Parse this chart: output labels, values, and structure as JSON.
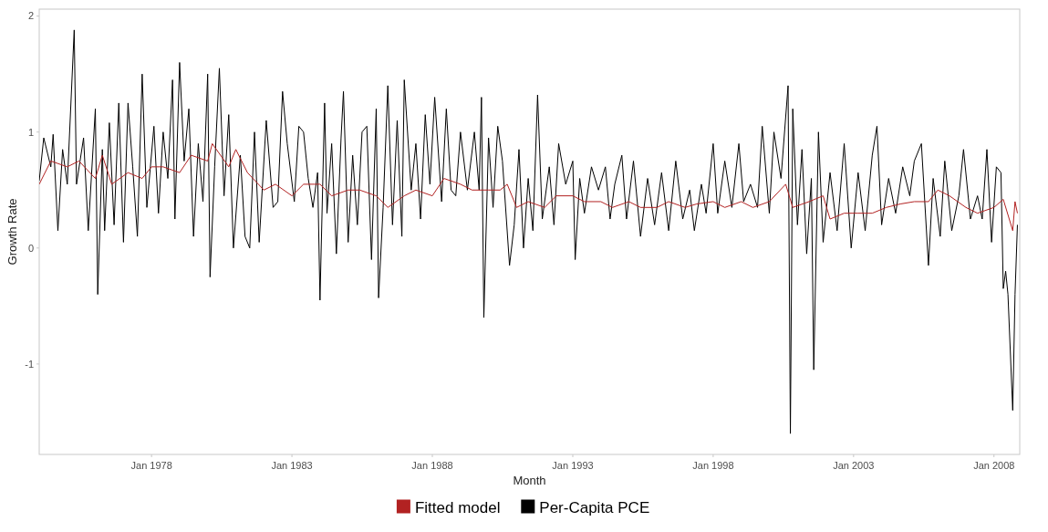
{
  "chart_data": {
    "type": "line",
    "xlabel": "Month",
    "ylabel": "Growth Rate",
    "xlim": [
      "1974-01",
      "2008-12"
    ],
    "ylim": [
      -1.78,
      2.06
    ],
    "yticks": [
      -1,
      0,
      1,
      2
    ],
    "xticks": [
      {
        "value": "1978-01",
        "label": "Jan 1978"
      },
      {
        "value": "1983-01",
        "label": "Jan 1983"
      },
      {
        "value": "1988-01",
        "label": "Jan 1988"
      },
      {
        "value": "1993-01",
        "label": "Jan 1993"
      },
      {
        "value": "1998-01",
        "label": "Jan 1998"
      },
      {
        "value": "2003-01",
        "label": "Jan 2003"
      },
      {
        "value": "2008-01",
        "label": "Jan 2008"
      }
    ],
    "grid": false,
    "legend": "bottom",
    "marker": "none",
    "line_style": "solid",
    "series": [
      {
        "name": "Fitted model",
        "color": "#b22222",
        "x": [
          "1974-01",
          "1974-06",
          "1975-01",
          "1975-06",
          "1976-01",
          "1976-04",
          "1976-08",
          "1977-03",
          "1977-09",
          "1978-01",
          "1978-06",
          "1979-01",
          "1979-06",
          "1980-01",
          "1980-03",
          "1980-10",
          "1981-01",
          "1981-06",
          "1982-01",
          "1982-06",
          "1983-01",
          "1983-06",
          "1984-01",
          "1984-06",
          "1985-01",
          "1985-06",
          "1986-01",
          "1986-06",
          "1987-01",
          "1987-06",
          "1988-01",
          "1988-06",
          "1989-01",
          "1989-06",
          "1990-01",
          "1990-06",
          "1990-09",
          "1991-01",
          "1991-06",
          "1992-01",
          "1992-06",
          "1993-01",
          "1993-06",
          "1994-01",
          "1994-06",
          "1995-01",
          "1995-06",
          "1996-01",
          "1996-06",
          "1997-01",
          "1997-06",
          "1998-01",
          "1998-06",
          "1999-01",
          "1999-06",
          "2000-01",
          "2000-08",
          "2000-11",
          "2001-06",
          "2001-12",
          "2002-03",
          "2002-09",
          "2003-03",
          "2003-09",
          "2004-03",
          "2004-09",
          "2005-03",
          "2005-09",
          "2006-01",
          "2006-06",
          "2007-01",
          "2007-06",
          "2008-01",
          "2008-05",
          "2008-09",
          "2008-10",
          "2008-11"
        ],
        "values": [
          0.55,
          0.75,
          0.7,
          0.75,
          0.6,
          0.8,
          0.55,
          0.65,
          0.6,
          0.7,
          0.7,
          0.65,
          0.8,
          0.75,
          0.9,
          0.7,
          0.85,
          0.65,
          0.5,
          0.55,
          0.45,
          0.55,
          0.55,
          0.45,
          0.5,
          0.5,
          0.45,
          0.35,
          0.45,
          0.5,
          0.45,
          0.6,
          0.55,
          0.5,
          0.5,
          0.5,
          0.55,
          0.35,
          0.4,
          0.35,
          0.45,
          0.45,
          0.4,
          0.4,
          0.35,
          0.4,
          0.35,
          0.35,
          0.4,
          0.35,
          0.38,
          0.4,
          0.35,
          0.4,
          0.35,
          0.4,
          0.55,
          0.35,
          0.4,
          0.45,
          0.25,
          0.3,
          0.3,
          0.3,
          0.35,
          0.38,
          0.4,
          0.4,
          0.5,
          0.45,
          0.35,
          0.3,
          0.35,
          0.42,
          0.15,
          0.4,
          0.3
        ]
      },
      {
        "name": "Per-Capita PCE",
        "color": "#000000",
        "x": [
          "1974-01",
          "1974-03",
          "1974-06",
          "1974-07",
          "1974-09",
          "1974-11",
          "1975-01",
          "1975-04",
          "1975-05",
          "1975-08",
          "1975-10",
          "1976-01",
          "1976-02",
          "1976-04",
          "1976-05",
          "1976-07",
          "1976-09",
          "1976-11",
          "1977-01",
          "1977-03",
          "1977-05",
          "1977-07",
          "1977-09",
          "1977-11",
          "1978-02",
          "1978-04",
          "1978-06",
          "1978-08",
          "1978-10",
          "1978-11",
          "1979-01",
          "1979-03",
          "1979-05",
          "1979-07",
          "1979-09",
          "1979-11",
          "1980-01",
          "1980-02",
          "1980-04",
          "1980-06",
          "1980-08",
          "1980-10",
          "1980-12",
          "1981-03",
          "1981-05",
          "1981-07",
          "1981-09",
          "1981-11",
          "1982-02",
          "1982-05",
          "1982-07",
          "1982-09",
          "1982-11",
          "1983-02",
          "1983-04",
          "1983-06",
          "1983-08",
          "1983-10",
          "1983-12",
          "1984-01",
          "1984-03",
          "1984-04",
          "1984-06",
          "1984-08",
          "1984-10",
          "1984-11",
          "1985-01",
          "1985-03",
          "1985-05",
          "1985-07",
          "1985-09",
          "1985-11",
          "1986-01",
          "1986-02",
          "1986-04",
          "1986-06",
          "1986-08",
          "1986-10",
          "1986-12",
          "1987-01",
          "1987-04",
          "1987-06",
          "1987-08",
          "1987-10",
          "1987-12",
          "1988-02",
          "1988-05",
          "1988-07",
          "1988-09",
          "1988-11",
          "1989-01",
          "1989-04",
          "1989-07",
          "1989-09",
          "1989-10",
          "1989-11",
          "1990-01",
          "1990-03",
          "1990-05",
          "1990-07",
          "1990-10",
          "1990-12",
          "1991-02",
          "1991-04",
          "1991-06",
          "1991-08",
          "1991-10",
          "1991-12",
          "1992-03",
          "1992-05",
          "1992-07",
          "1992-10",
          "1993-01",
          "1993-02",
          "1993-04",
          "1993-06",
          "1993-09",
          "1993-12",
          "1994-03",
          "1994-05",
          "1994-07",
          "1994-10",
          "1994-12",
          "1995-03",
          "1995-06",
          "1995-09",
          "1995-12",
          "1996-03",
          "1996-06",
          "1996-09",
          "1996-12",
          "1997-03",
          "1997-05",
          "1997-08",
          "1997-10",
          "1998-01",
          "1998-03",
          "1998-06",
          "1998-09",
          "1998-12",
          "1999-02",
          "1999-05",
          "1999-08",
          "1999-10",
          "2000-01",
          "2000-03",
          "2000-06",
          "2000-09",
          "2000-10",
          "2000-11",
          "2001-01",
          "2001-03",
          "2001-05",
          "2001-07",
          "2001-08",
          "2001-10",
          "2001-12",
          "2002-03",
          "2002-06",
          "2002-09",
          "2002-12",
          "2003-03",
          "2003-06",
          "2003-09",
          "2003-11",
          "2004-01",
          "2004-04",
          "2004-07",
          "2004-10",
          "2005-01",
          "2005-03",
          "2005-06",
          "2005-09",
          "2005-11",
          "2006-02",
          "2006-04",
          "2006-07",
          "2006-10",
          "2006-12",
          "2007-03",
          "2007-06",
          "2007-08",
          "2007-10",
          "2007-12",
          "2008-02",
          "2008-04",
          "2008-05",
          "2008-06",
          "2008-07",
          "2008-09",
          "2008-10",
          "2008-11"
        ],
        "values": [
          0.58,
          0.95,
          0.7,
          0.98,
          0.15,
          0.85,
          0.55,
          1.88,
          0.55,
          0.95,
          0.15,
          1.2,
          -0.4,
          0.85,
          0.15,
          1.08,
          0.2,
          1.25,
          0.05,
          1.25,
          0.7,
          0.1,
          1.5,
          0.35,
          1.05,
          0.3,
          1.0,
          0.6,
          1.45,
          0.25,
          1.6,
          0.75,
          1.2,
          0.1,
          0.9,
          0.4,
          1.5,
          -0.25,
          0.7,
          1.55,
          0.45,
          1.15,
          0.0,
          0.8,
          0.1,
          0.0,
          1.0,
          0.05,
          1.1,
          0.35,
          0.4,
          1.35,
          0.9,
          0.4,
          1.05,
          1.0,
          0.6,
          0.35,
          0.65,
          -0.45,
          1.25,
          0.3,
          0.9,
          -0.05,
          0.95,
          1.35,
          0.05,
          0.8,
          0.2,
          1.0,
          1.05,
          -0.1,
          1.2,
          -0.43,
          0.35,
          1.4,
          0.2,
          1.1,
          0.1,
          1.45,
          0.5,
          0.9,
          0.25,
          1.15,
          0.55,
          1.3,
          0.4,
          1.2,
          0.5,
          0.45,
          1.0,
          0.5,
          1.0,
          0.5,
          1.3,
          -0.6,
          0.95,
          0.35,
          1.05,
          0.75,
          -0.15,
          0.2,
          0.85,
          0.0,
          0.6,
          0.15,
          1.32,
          0.25,
          0.7,
          0.2,
          0.9,
          0.55,
          0.75,
          -0.1,
          0.6,
          0.3,
          0.7,
          0.5,
          0.7,
          0.25,
          0.55,
          0.8,
          0.25,
          0.75,
          0.1,
          0.6,
          0.2,
          0.65,
          0.15,
          0.75,
          0.25,
          0.5,
          0.15,
          0.55,
          0.3,
          0.9,
          0.3,
          0.75,
          0.35,
          0.9,
          0.4,
          0.55,
          0.35,
          1.05,
          0.3,
          1.0,
          0.6,
          1.4,
          -1.6,
          1.2,
          0.2,
          0.85,
          -0.05,
          0.6,
          -1.05,
          1.0,
          0.05,
          0.65,
          0.15,
          0.9,
          0.0,
          0.65,
          0.15,
          0.8,
          1.05,
          0.2,
          0.6,
          0.3,
          0.7,
          0.45,
          0.75,
          0.9,
          -0.15,
          0.6,
          0.1,
          0.75,
          0.15,
          0.45,
          0.85,
          0.25,
          0.45,
          0.25,
          0.85,
          0.05,
          0.7,
          0.65,
          -0.35,
          -0.2,
          -0.4,
          -1.4,
          -0.4,
          0.2
        ]
      }
    ]
  }
}
